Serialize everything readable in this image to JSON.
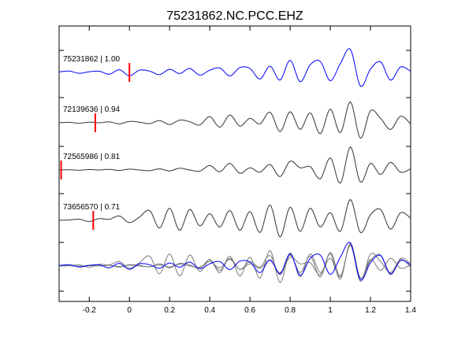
{
  "chart_data": {
    "type": "line",
    "title": "75231862.NC.PCC.EHZ",
    "xlabel": "",
    "ylabel": "",
    "xlim": [
      -0.35,
      1.4
    ],
    "x_ticks": [
      "-0.2",
      "0",
      "0.2",
      "0.4",
      "0.6",
      "0.8",
      "1",
      "1.2",
      "1.4"
    ],
    "x_tick_values": [
      -0.2,
      0,
      0.2,
      0.4,
      0.6,
      0.8,
      1.0,
      1.2,
      1.4
    ],
    "grid": false,
    "series": [
      {
        "name": "75231862 | 1.00",
        "color": "#0000ff",
        "pick_time": 0.0,
        "x": [
          -0.35,
          -0.3,
          -0.25,
          -0.2,
          -0.15,
          -0.1,
          -0.05,
          0,
          0.05,
          0.1,
          0.15,
          0.2,
          0.25,
          0.3,
          0.35,
          0.4,
          0.45,
          0.5,
          0.55,
          0.6,
          0.65,
          0.7,
          0.75,
          0.8,
          0.85,
          0.9,
          0.95,
          1.0,
          1.05,
          1.1,
          1.15,
          1.2,
          1.25,
          1.3,
          1.35,
          1.4
        ],
        "y": [
          0.02,
          0.06,
          -0.04,
          0.03,
          0.05,
          -0.08,
          0.12,
          -0.15,
          0.1,
          0.06,
          -0.1,
          0.14,
          -0.05,
          0.18,
          -0.12,
          0.1,
          0.2,
          -0.16,
          0.22,
          0.18,
          -0.3,
          0.28,
          -0.35,
          0.55,
          -0.42,
          0.35,
          0.5,
          -0.38,
          0.4,
          1.05,
          -0.62,
          0.15,
          0.48,
          -0.35,
          0.25,
          0.05
        ]
      },
      {
        "name": "72139636 | 0.94",
        "color": "#333333",
        "pick_time": -0.17,
        "x": [
          -0.35,
          -0.3,
          -0.25,
          -0.2,
          -0.15,
          -0.1,
          -0.05,
          0,
          0.05,
          0.1,
          0.15,
          0.2,
          0.25,
          0.3,
          0.35,
          0.4,
          0.45,
          0.5,
          0.55,
          0.6,
          0.65,
          0.7,
          0.75,
          0.8,
          0.85,
          0.9,
          0.95,
          1.0,
          1.05,
          1.1,
          1.15,
          1.2,
          1.25,
          1.3,
          1.35,
          1.4
        ],
        "y": [
          0.0,
          0.02,
          -0.02,
          0.03,
          0.0,
          0.04,
          -0.05,
          0.06,
          0.03,
          -0.04,
          0.1,
          -0.08,
          0.12,
          0.05,
          -0.1,
          0.28,
          -0.2,
          0.35,
          -0.15,
          0.2,
          -0.05,
          0.48,
          -0.4,
          0.5,
          -0.3,
          0.45,
          -0.5,
          0.62,
          -0.45,
          0.95,
          -0.7,
          0.55,
          0.2,
          -0.3,
          0.3,
          -0.05
        ]
      },
      {
        "name": "72565986 | 0.81",
        "color": "#333333",
        "pick_time": -0.34,
        "x": [
          -0.35,
          -0.3,
          -0.25,
          -0.2,
          -0.15,
          -0.1,
          -0.05,
          0,
          0.05,
          0.1,
          0.15,
          0.2,
          0.25,
          0.3,
          0.35,
          0.4,
          0.45,
          0.5,
          0.55,
          0.6,
          0.65,
          0.7,
          0.75,
          0.8,
          0.85,
          0.9,
          0.95,
          1.0,
          1.05,
          1.1,
          1.15,
          1.2,
          1.25,
          1.3,
          1.35,
          1.4
        ],
        "y": [
          0.0,
          0.01,
          -0.01,
          0.02,
          0.0,
          0.03,
          -0.02,
          0.04,
          0.0,
          -0.03,
          0.05,
          -0.04,
          0.08,
          0.0,
          -0.05,
          0.2,
          -0.08,
          0.3,
          -0.15,
          0.1,
          -0.1,
          0.25,
          -0.3,
          0.4,
          0.1,
          0.15,
          -0.4,
          0.55,
          -0.6,
          1.05,
          -0.55,
          0.3,
          -0.2,
          0.35,
          -0.1,
          0.05
        ]
      },
      {
        "name": "73656570 | 0.71",
        "color": "#333333",
        "pick_time": -0.18,
        "x": [
          -0.35,
          -0.3,
          -0.25,
          -0.2,
          -0.15,
          -0.1,
          -0.05,
          0,
          0.05,
          0.1,
          0.15,
          0.2,
          0.25,
          0.3,
          0.35,
          0.4,
          0.45,
          0.5,
          0.55,
          0.6,
          0.65,
          0.7,
          0.75,
          0.8,
          0.85,
          0.9,
          0.95,
          1.0,
          1.05,
          1.1,
          1.15,
          1.2,
          1.25,
          1.3,
          1.35,
          1.4
        ],
        "y": [
          0.0,
          0.02,
          0.05,
          -0.05,
          0.08,
          0.05,
          0.2,
          -0.1,
          0.15,
          0.45,
          -0.35,
          0.55,
          -0.45,
          0.5,
          -0.25,
          0.3,
          -0.3,
          0.45,
          -0.45,
          0.4,
          -0.55,
          0.7,
          -0.75,
          0.6,
          -0.5,
          0.55,
          -0.3,
          0.35,
          -0.5,
          0.95,
          -0.55,
          0.25,
          0.5,
          -0.4,
          0.35,
          0.1
        ]
      }
    ],
    "overlay_note": "bottom panel overlays all four traces (blue = reference)"
  }
}
